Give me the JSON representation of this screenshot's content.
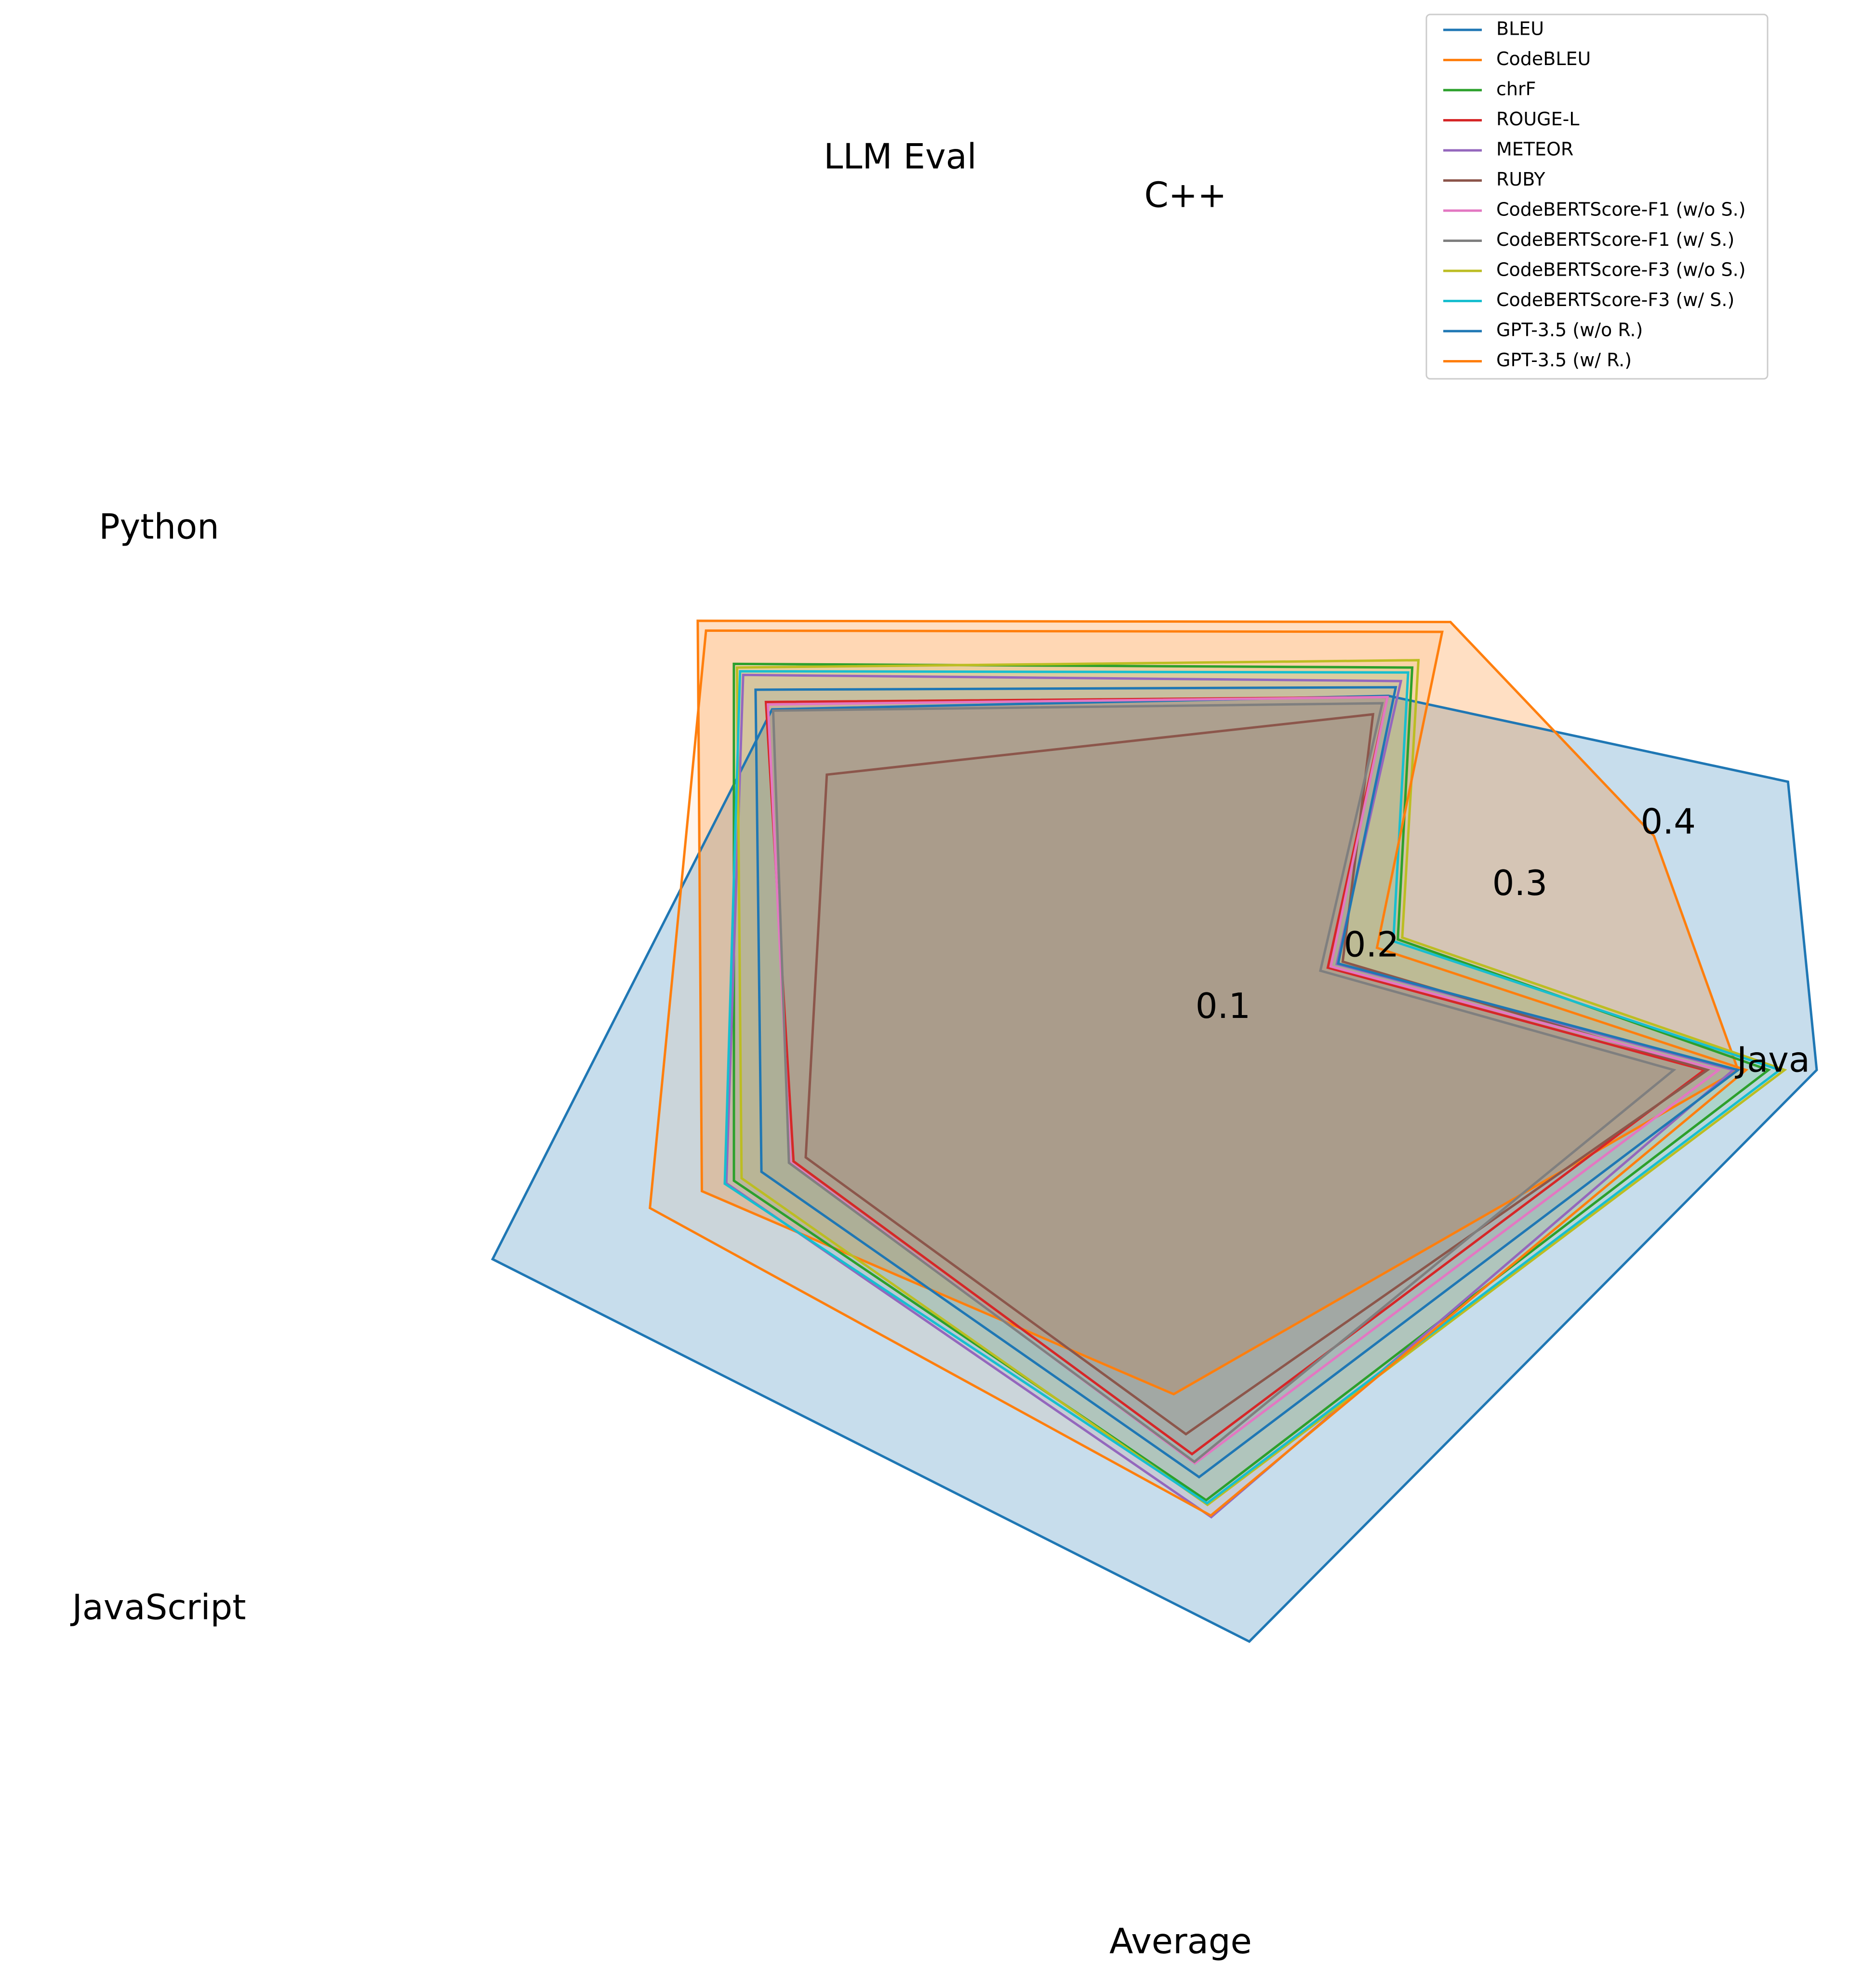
{
  "chart_data": {
    "type": "radar",
    "categories": [
      "Java",
      "C++",
      "LLM Eval",
      "Python",
      "JavaScript",
      "Average"
    ],
    "radial_ticks": [
      "0.1",
      "0.2",
      "0.3",
      "0.4"
    ],
    "rlim": [
      0,
      0.45
    ],
    "grid": false,
    "legend_position": "top-right",
    "series": [
      {
        "name": "BLEU",
        "color": "#1f77b4",
        "values": [
          0.462,
          0.479,
          0.304,
          0.293,
          0.381,
          0.372
        ],
        "filled": true
      },
      {
        "name": "CodeBLEU",
        "color": "#ff7f0e",
        "values": [
          0.413,
          0.389,
          0.364,
          0.365,
          0.244,
          0.211
        ],
        "filled": true
      },
      {
        "name": "chrF",
        "color": "#2ca02c",
        "values": [
          0.432,
          0.217,
          0.327,
          0.33,
          0.223,
          0.28
        ],
        "filled": false
      },
      {
        "name": "ROUGE-L",
        "color": "#d62728",
        "values": [
          0.392,
          0.17,
          0.303,
          0.299,
          0.184,
          0.25
        ],
        "filled": false
      },
      {
        "name": "METEOR",
        "color": "#9467bd",
        "values": [
          0.41,
          0.176,
          0.316,
          0.321,
          0.228,
          0.291
        ],
        "filled": false
      },
      {
        "name": "RUBY",
        "color": "#8c564b",
        "values": [
          0.394,
          0.18,
          0.289,
          0.24,
          0.176,
          0.237
        ],
        "filled": false
      },
      {
        "name": "CodeBERTScore-F1 (w/o S.)",
        "color": "#e377c2",
        "values": [
          0.401,
          0.172,
          0.303,
          0.297,
          0.186,
          0.256
        ],
        "filled": false
      },
      {
        "name": "CodeBERTScore-F1 (w/ S.)",
        "color": "#7f7f7f",
        "values": [
          0.373,
          0.165,
          0.298,
          0.292,
          0.187,
          0.255
        ],
        "filled": false
      },
      {
        "name": "CodeBERTScore-F3 (w/o S.)",
        "color": "#bcbd22",
        "values": [
          0.442,
          0.22,
          0.333,
          0.327,
          0.218,
          0.283
        ],
        "filled": false
      },
      {
        "name": "CodeBERTScore-F3 (w/ S.)",
        "color": "#17becf",
        "values": [
          0.439,
          0.214,
          0.323,
          0.324,
          0.229,
          0.282
        ],
        "filled": false
      },
      {
        "name": "GPT-3.5 (w/o R.)",
        "color": "#1f77b4",
        "values": [
          0.413,
          0.177,
          0.311,
          0.309,
          0.205,
          0.265
        ],
        "filled": false
      },
      {
        "name": "GPT-3.5 (w/ R.)",
        "color": "#ff7f0e",
        "values": [
          0.418,
          0.203,
          0.356,
          0.357,
          0.278,
          0.29
        ],
        "filled": false
      }
    ]
  }
}
